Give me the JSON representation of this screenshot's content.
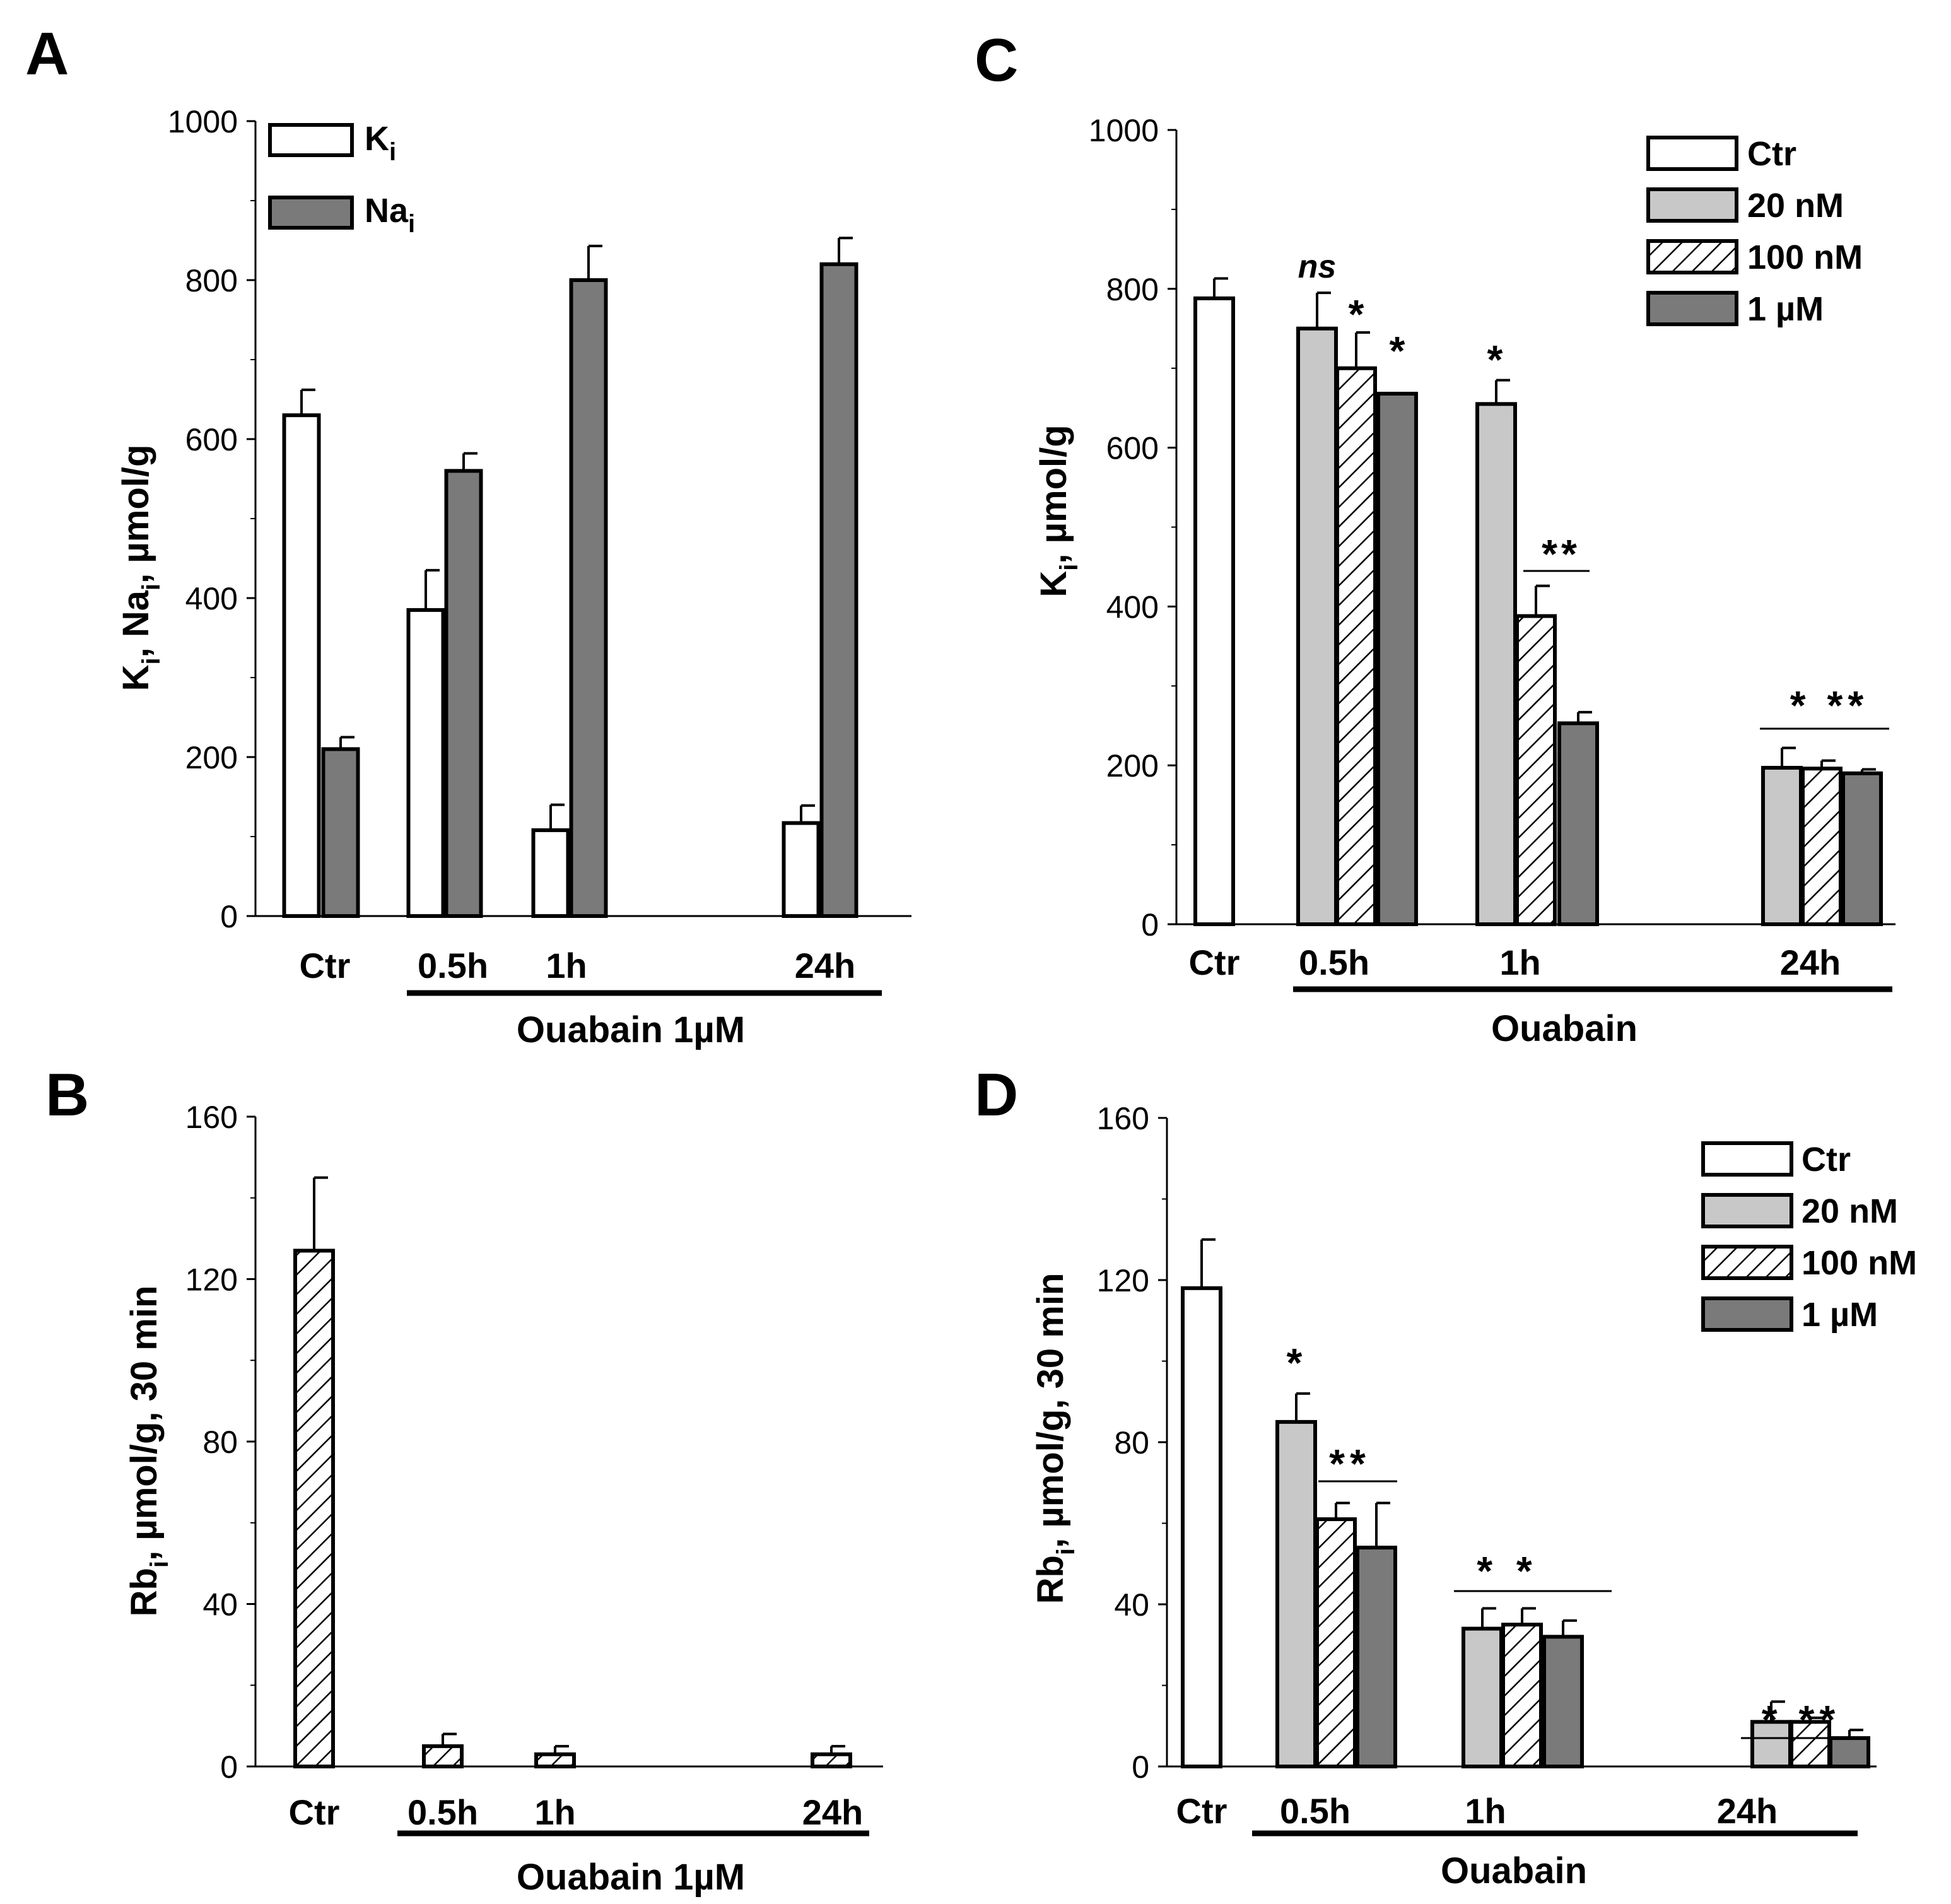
{
  "colors": {
    "white_fill": "#ffffff",
    "light_gray_fill": "#c8c8c8",
    "dark_gray_fill": "#7a7a7a",
    "stroke": "#000000"
  },
  "chart_data": [
    {
      "panel": "A",
      "type": "bar",
      "ylabel": "Kᵢ, Naᵢ,  µmol/g",
      "ylim": [
        0,
        1000
      ],
      "yticks": [
        0,
        200,
        400,
        600,
        800,
        1000
      ],
      "categories": [
        "Ctr",
        "0.5h",
        "1h",
        "24h"
      ],
      "bracket_label": "Ouabain 1µM",
      "legend": {
        "position": "top-left",
        "entries": [
          {
            "label": "K",
            "sub": "i",
            "fill": "white"
          },
          {
            "label": "Na",
            "sub": "i",
            "fill": "dark"
          }
        ]
      },
      "series": [
        {
          "name": "Ki",
          "fill": "white",
          "values": [
            630,
            385,
            108,
            117
          ],
          "errors": [
            32,
            50,
            32,
            22
          ]
        },
        {
          "name": "Nai",
          "fill": "dark",
          "values": [
            210,
            560,
            800,
            820
          ],
          "errors": [
            15,
            22,
            43,
            33
          ]
        }
      ],
      "significance": []
    },
    {
      "panel": "B",
      "type": "bar",
      "ylabel": "Rbᵢ,   µmol/g, 30 min",
      "ylim": [
        0,
        160
      ],
      "yticks": [
        0,
        40,
        80,
        120,
        160
      ],
      "categories": [
        "Ctr",
        "0.5h",
        "1h",
        "24h"
      ],
      "bracket_label": "Ouabain 1µM",
      "legend": null,
      "series": [
        {
          "name": "Rbi",
          "fill": "hatch",
          "values": [
            127,
            5,
            3,
            3
          ],
          "errors": [
            18,
            3,
            2,
            2
          ]
        }
      ],
      "significance": []
    },
    {
      "panel": "C",
      "type": "bar",
      "ylabel": "Kᵢ, µmol/g",
      "ylim": [
        0,
        1000
      ],
      "yticks": [
        0,
        200,
        400,
        600,
        800,
        1000
      ],
      "categories": [
        "Ctr",
        "0.5h",
        "1h",
        "24h"
      ],
      "bracket_label": "Ouabain",
      "legend": {
        "position": "top-right",
        "entries": [
          {
            "label": "Ctr",
            "fill": "white"
          },
          {
            "label": "20 nM",
            "fill": "light"
          },
          {
            "label": "100 nM",
            "fill": "hatch"
          },
          {
            "label": "1 µM",
            "fill": "dark"
          }
        ]
      },
      "series": [
        {
          "name": "Ctr",
          "fill": "white",
          "values": [
            788,
            null,
            null,
            null
          ],
          "errors": [
            25,
            null,
            null,
            null
          ]
        },
        {
          "name": "20 nM",
          "fill": "light",
          "values": [
            null,
            750,
            655,
            197
          ],
          "errors": [
            null,
            45,
            30,
            25
          ]
        },
        {
          "name": "100 nM",
          "fill": "hatch",
          "values": [
            null,
            700,
            388,
            196
          ],
          "errors": [
            null,
            45,
            38,
            10
          ]
        },
        {
          "name": "1 µM",
          "fill": "dark",
          "values": [
            null,
            668,
            253,
            190
          ],
          "errors": [
            null,
            0,
            14,
            5
          ]
        }
      ],
      "significance": [
        {
          "text": "ns",
          "italic": true
        },
        {
          "text": "*"
        },
        {
          "text": "*"
        },
        {
          "text": "*"
        },
        {
          "text": "**"
        },
        {
          "text": "* **"
        }
      ]
    },
    {
      "panel": "D",
      "type": "bar",
      "ylabel": "Rbᵢ,  µmol/g, 30 min",
      "ylim": [
        0,
        160
      ],
      "yticks": [
        0,
        40,
        80,
        120,
        160
      ],
      "categories": [
        "Ctr",
        "0.5h",
        "1h",
        "24h"
      ],
      "bracket_label": "Ouabain",
      "legend": {
        "position": "top-right",
        "entries": [
          {
            "label": "Ctr",
            "fill": "white"
          },
          {
            "label": "20 nM",
            "fill": "light"
          },
          {
            "label": "100 nM",
            "fill": "hatch"
          },
          {
            "label": "1 µM",
            "fill": "dark"
          }
        ]
      },
      "series": [
        {
          "name": "Ctr",
          "fill": "white",
          "values": [
            118,
            null,
            null,
            null
          ],
          "errors": [
            12,
            null,
            null,
            null
          ]
        },
        {
          "name": "20 nM",
          "fill": "light",
          "values": [
            null,
            85,
            34,
            11
          ],
          "errors": [
            null,
            7,
            5,
            5
          ]
        },
        {
          "name": "100 nM",
          "fill": "hatch",
          "values": [
            null,
            61,
            35,
            11
          ],
          "errors": [
            null,
            4,
            4,
            1
          ]
        },
        {
          "name": "1 µM",
          "fill": "dark",
          "values": [
            null,
            54,
            32,
            7
          ],
          "errors": [
            null,
            11,
            4,
            2
          ]
        }
      ],
      "significance": [
        {
          "text": "*"
        },
        {
          "text": "**"
        },
        {
          "text": "* *"
        },
        {
          "text": "* **"
        }
      ]
    }
  ]
}
